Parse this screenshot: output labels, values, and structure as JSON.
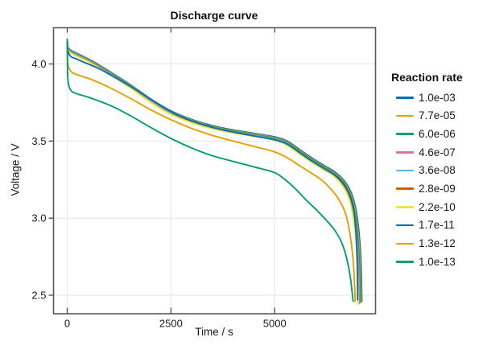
{
  "chart_data": {
    "type": "line",
    "title": "Discharge curve",
    "xlabel": "Time / s",
    "ylabel": "Voltage / V",
    "xlim": [
      -330,
      7430
    ],
    "ylim": [
      2.38,
      4.235
    ],
    "xticks": [
      0,
      2500,
      5000
    ],
    "xtick_labels": [
      "0",
      "2500",
      "5000"
    ],
    "yticks": [
      2.5,
      3.0,
      3.5,
      4.0
    ],
    "ytick_labels": [
      "2.5",
      "3.0",
      "3.5",
      "4.0"
    ],
    "grid": true,
    "legend_title": "Reaction rate",
    "legend_position": "right",
    "series": [
      {
        "name": "1.0e-03",
        "color": "#0072B2",
        "points": [
          [
            0,
            4.16
          ],
          [
            15,
            4.11
          ],
          [
            60,
            4.095
          ],
          [
            150,
            4.08
          ],
          [
            300,
            4.06
          ],
          [
            600,
            4.02
          ],
          [
            1000,
            3.955
          ],
          [
            1500,
            3.87
          ],
          [
            2000,
            3.775
          ],
          [
            2500,
            3.695
          ],
          [
            3000,
            3.64
          ],
          [
            3500,
            3.6
          ],
          [
            4000,
            3.572
          ],
          [
            4500,
            3.55
          ],
          [
            5000,
            3.527
          ],
          [
            5300,
            3.5
          ],
          [
            5600,
            3.445
          ],
          [
            5900,
            3.39
          ],
          [
            6200,
            3.34
          ],
          [
            6450,
            3.3
          ],
          [
            6650,
            3.25
          ],
          [
            6800,
            3.19
          ],
          [
            6900,
            3.12
          ],
          [
            6980,
            3.02
          ],
          [
            7040,
            2.88
          ],
          [
            7080,
            2.7
          ],
          [
            7100,
            2.46
          ]
        ]
      },
      {
        "name": "7.7e-05",
        "color": "#E69F00",
        "derived_from": "1.0e-03",
        "voffset": 0.004,
        "tscale": 0.99718
      },
      {
        "name": "6.0e-06",
        "color": "#009E73",
        "derived_from": "1.0e-03",
        "voffset": 0.007,
        "tscale": 0.99437
      },
      {
        "name": "4.6e-07",
        "color": "#CC79A7",
        "derived_from": "1.0e-03",
        "voffset": 0.01,
        "tscale": 0.99211
      },
      {
        "name": "3.6e-08",
        "color": "#56B4E9",
        "derived_from": "1.0e-03",
        "voffset": 0.013,
        "tscale": 0.99042
      },
      {
        "name": "2.8e-09",
        "color": "#D55E00",
        "derived_from": "1.0e-03",
        "voffset": 0.016,
        "tscale": 0.98901
      },
      {
        "name": "2.2e-10",
        "color": "#F0E442",
        "derived_from": "1.0e-03",
        "voffset": 0.018,
        "tscale": 0.98789
      },
      {
        "name": "1.7e-11",
        "color": "#0072B2",
        "points": [
          [
            0,
            4.16
          ],
          [
            20,
            4.085
          ],
          [
            80,
            4.05
          ],
          [
            200,
            4.035
          ],
          [
            400,
            4.012
          ],
          [
            800,
            3.965
          ],
          [
            1200,
            3.905
          ],
          [
            1700,
            3.825
          ],
          [
            2200,
            3.74
          ],
          [
            2600,
            3.675
          ],
          [
            3000,
            3.63
          ],
          [
            3500,
            3.588
          ],
          [
            4000,
            3.558
          ],
          [
            4500,
            3.533
          ],
          [
            5000,
            3.508
          ],
          [
            5300,
            3.48
          ],
          [
            5600,
            3.425
          ],
          [
            5900,
            3.37
          ],
          [
            6200,
            3.32
          ],
          [
            6450,
            3.278
          ],
          [
            6650,
            3.225
          ],
          [
            6800,
            3.155
          ],
          [
            6900,
            3.06
          ],
          [
            6960,
            2.9
          ],
          [
            6990,
            2.7
          ],
          [
            7000,
            2.47
          ]
        ]
      },
      {
        "name": "1.3e-12",
        "color": "#E69F00",
        "points": [
          [
            0,
            4.16
          ],
          [
            10,
            4.02
          ],
          [
            40,
            3.975
          ],
          [
            120,
            3.945
          ],
          [
            300,
            3.925
          ],
          [
            600,
            3.898
          ],
          [
            1000,
            3.85
          ],
          [
            1500,
            3.78
          ],
          [
            2000,
            3.705
          ],
          [
            2500,
            3.638
          ],
          [
            3000,
            3.582
          ],
          [
            3500,
            3.537
          ],
          [
            4000,
            3.5
          ],
          [
            4500,
            3.465
          ],
          [
            5000,
            3.43
          ],
          [
            5300,
            3.392
          ],
          [
            5600,
            3.34
          ],
          [
            5900,
            3.29
          ],
          [
            6150,
            3.243
          ],
          [
            6350,
            3.19
          ],
          [
            6550,
            3.12
          ],
          [
            6700,
            3.035
          ],
          [
            6800,
            2.92
          ],
          [
            6880,
            2.76
          ],
          [
            6920,
            2.6
          ],
          [
            6940,
            2.46
          ]
        ]
      },
      {
        "name": "1.0e-13",
        "color": "#009E73",
        "points": [
          [
            0,
            4.16
          ],
          [
            8,
            3.95
          ],
          [
            30,
            3.87
          ],
          [
            100,
            3.825
          ],
          [
            250,
            3.805
          ],
          [
            500,
            3.785
          ],
          [
            1000,
            3.735
          ],
          [
            1500,
            3.668
          ],
          [
            2000,
            3.59
          ],
          [
            2500,
            3.517
          ],
          [
            3000,
            3.455
          ],
          [
            3500,
            3.405
          ],
          [
            4000,
            3.368
          ],
          [
            4500,
            3.333
          ],
          [
            5000,
            3.295
          ],
          [
            5250,
            3.25
          ],
          [
            5500,
            3.19
          ],
          [
            5750,
            3.12
          ],
          [
            6000,
            3.055
          ],
          [
            6250,
            2.985
          ],
          [
            6450,
            2.92
          ],
          [
            6600,
            2.85
          ],
          [
            6720,
            2.755
          ],
          [
            6820,
            2.62
          ],
          [
            6890,
            2.46
          ]
        ]
      }
    ]
  },
  "style_colors": {
    "spine": "#59595b",
    "grid": "#e9e9e9",
    "tick": "#4a4a4c",
    "text": "#1a1a1a"
  }
}
